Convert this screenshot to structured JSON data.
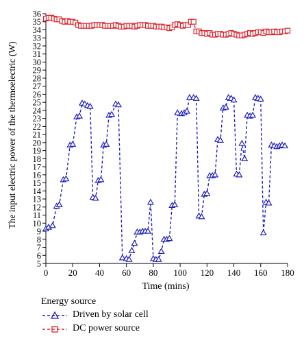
{
  "chart_data": {
    "type": "line",
    "xlabel": "Time (mins)",
    "ylabel": "The input electric power of the thermoelectric (W)",
    "xlim": [
      0,
      180
    ],
    "ylim": [
      5,
      36
    ],
    "x_ticks": [
      0,
      20,
      40,
      60,
      80,
      100,
      120,
      140,
      160,
      180
    ],
    "y_ticks": [
      5,
      6,
      7,
      8,
      9,
      10,
      11,
      12,
      13,
      14,
      15,
      16,
      17,
      18,
      19,
      20,
      21,
      22,
      23,
      24,
      25,
      26,
      27,
      28,
      29,
      30,
      31,
      32,
      33,
      34,
      35,
      36
    ],
    "grid": false,
    "legend_title": "Energy source",
    "legend_position": "bottom",
    "series": [
      {
        "name": "Driven by solar cell",
        "color": "#1f1fbf",
        "marker": "triangle",
        "line_style": "dashed",
        "x": [
          0,
          2,
          5,
          8,
          10,
          13,
          15,
          18,
          20,
          23,
          25,
          27,
          29,
          31,
          33,
          35,
          37,
          39,
          41,
          43,
          45,
          47,
          49,
          52,
          54,
          57,
          60,
          62,
          64,
          66,
          68,
          70,
          72,
          74,
          76,
          78,
          80,
          82,
          84,
          86,
          88,
          90,
          92,
          94,
          96,
          98,
          101,
          103,
          105,
          107,
          110,
          112,
          114,
          116,
          118,
          120,
          122,
          124,
          126,
          128,
          130,
          132,
          134,
          136,
          138,
          140,
          142,
          144,
          146,
          148,
          150,
          152,
          154,
          156,
          158,
          160,
          162,
          164,
          166,
          168,
          170,
          172,
          174,
          176,
          178
        ],
        "y": [
          9.3,
          9.5,
          9.7,
          12.1,
          12.3,
          15.4,
          15.5,
          19.7,
          19.8,
          23.2,
          23.3,
          24.9,
          24.8,
          24.6,
          24.5,
          13.2,
          13.1,
          15.3,
          15.4,
          19.7,
          19.8,
          23.4,
          23.5,
          24.8,
          24.7,
          5.7,
          5.6,
          5.5,
          6.6,
          7.5,
          8.9,
          8.9,
          9.0,
          9.0,
          9.0,
          12.6,
          5.6,
          5.5,
          5.5,
          6.5,
          8.0,
          8.0,
          8.1,
          12.2,
          12.3,
          23.7,
          23.6,
          23.7,
          23.9,
          25.6,
          25.6,
          25.5,
          10.9,
          10.8,
          13.6,
          13.7,
          15.9,
          15.9,
          16.0,
          20.4,
          20.3,
          24.3,
          24.4,
          25.6,
          25.5,
          25.3,
          16.1,
          16.0,
          19.9,
          18.0,
          23.4,
          23.3,
          23.4,
          25.6,
          25.5,
          25.4,
          8.8,
          12.6,
          12.5,
          19.7,
          19.6,
          19.5,
          19.6,
          19.7,
          19.6
        ]
      },
      {
        "name": "DC power source",
        "color": "#e0202a",
        "marker": "square",
        "line_style": "dashed",
        "x": [
          0,
          2,
          4,
          6,
          8,
          10,
          12,
          14,
          16,
          18,
          20,
          22,
          24,
          26,
          28,
          30,
          32,
          34,
          36,
          38,
          40,
          42,
          44,
          46,
          48,
          50,
          52,
          54,
          56,
          58,
          60,
          62,
          64,
          66,
          68,
          70,
          72,
          74,
          76,
          78,
          80,
          82,
          84,
          86,
          88,
          90,
          92,
          94,
          96,
          98,
          100,
          102,
          104,
          106,
          108,
          110,
          112,
          114,
          116,
          118,
          120,
          122,
          124,
          126,
          128,
          130,
          132,
          134,
          136,
          138,
          140,
          142,
          144,
          146,
          148,
          150,
          152,
          154,
          156,
          158,
          160,
          162,
          164,
          166,
          168,
          170,
          172,
          174,
          176,
          178,
          180
        ],
        "y": [
          35.4,
          35.5,
          35.5,
          35.4,
          35.3,
          35.3,
          35.1,
          35.0,
          35.1,
          35.0,
          35.0,
          34.9,
          34.6,
          34.5,
          34.5,
          34.5,
          34.5,
          34.5,
          34.6,
          34.6,
          34.6,
          34.6,
          34.5,
          34.5,
          34.5,
          34.5,
          34.6,
          34.5,
          34.4,
          34.4,
          34.5,
          34.5,
          34.5,
          34.4,
          34.5,
          34.6,
          34.6,
          34.6,
          34.5,
          34.5,
          34.5,
          34.4,
          34.4,
          34.4,
          34.3,
          34.3,
          34.2,
          34.3,
          34.6,
          34.7,
          34.6,
          34.5,
          34.6,
          34.6,
          35.0,
          35.0,
          33.8,
          33.8,
          33.6,
          33.6,
          33.5,
          33.6,
          33.4,
          33.4,
          33.5,
          33.5,
          33.4,
          33.4,
          33.5,
          33.6,
          33.5,
          33.4,
          33.3,
          33.3,
          33.4,
          33.5,
          33.6,
          33.5,
          33.6,
          33.7,
          33.7,
          33.6,
          33.8,
          33.7,
          33.7,
          33.8,
          33.7,
          33.7,
          33.8,
          33.8,
          33.9
        ]
      }
    ]
  }
}
